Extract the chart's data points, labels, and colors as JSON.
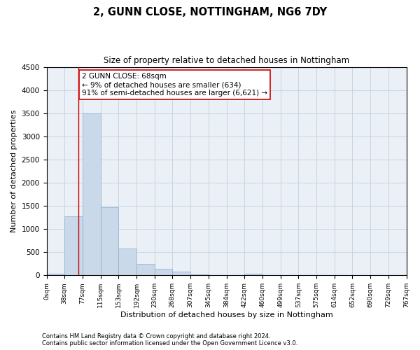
{
  "title": "2, GUNN CLOSE, NOTTINGHAM, NG6 7DY",
  "subtitle": "Size of property relative to detached houses in Nottingham",
  "xlabel": "Distribution of detached houses by size in Nottingham",
  "ylabel": "Number of detached properties",
  "footnote1": "Contains HM Land Registry data © Crown copyright and database right 2024.",
  "footnote2": "Contains public sector information licensed under the Open Government Licence v3.0.",
  "bin_edges": [
    0,
    38,
    77,
    115,
    153,
    192,
    230,
    268,
    307,
    345,
    384,
    422,
    460,
    499,
    537,
    575,
    614,
    652,
    690,
    729,
    767
  ],
  "bar_heights": [
    30,
    1280,
    3500,
    1475,
    575,
    240,
    135,
    80,
    15,
    0,
    0,
    30,
    0,
    0,
    0,
    0,
    0,
    0,
    0,
    0
  ],
  "bar_color": "#c9d9ea",
  "bar_edge_color": "#8ab0cc",
  "grid_color": "#c5d5e5",
  "vline_x": 68,
  "vline_color": "#cc0000",
  "annotation_text": "2 GUNN CLOSE: 68sqm\n← 9% of detached houses are smaller (634)\n91% of semi-detached houses are larger (6,621) →",
  "annotation_box_color": "white",
  "annotation_box_edge": "#cc0000",
  "ylim": [
    0,
    4500
  ],
  "yticks": [
    0,
    500,
    1000,
    1500,
    2000,
    2500,
    3000,
    3500,
    4000,
    4500
  ],
  "bg_color": "#eaf0f6"
}
